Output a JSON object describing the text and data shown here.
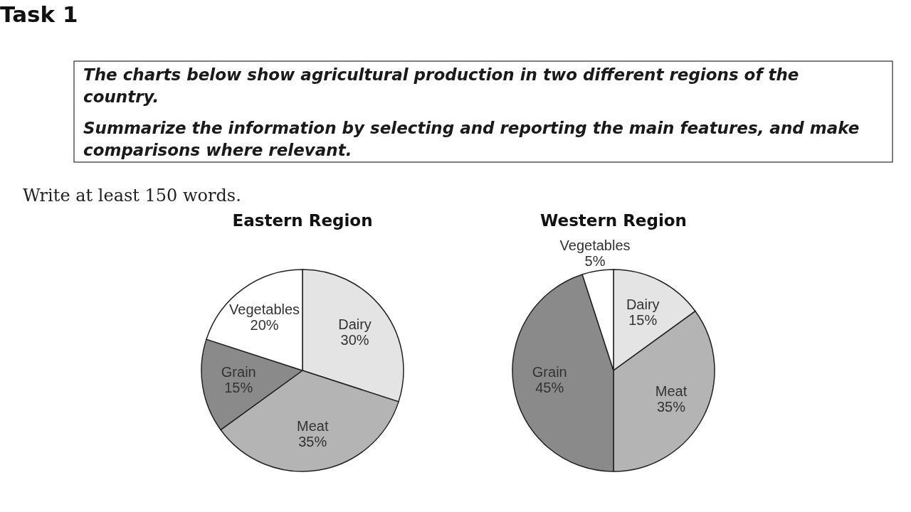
{
  "chart_data": [
    {
      "type": "other",
      "title": "Task 1",
      "annotations": [
        "The charts below show agricultural production in two different regions of the country.",
        "Summarize the information by selecting and reporting the main features, and make comparisons where relevant.",
        "Write at least 150 words."
      ]
    },
    {
      "type": "pie",
      "title": "Eastern Region",
      "categories": [
        "Dairy",
        "Meat",
        "Grain",
        "Vegetables"
      ],
      "values": [
        30,
        35,
        15,
        20
      ],
      "value_labels": [
        "30%",
        "35%",
        "15%",
        "20%"
      ],
      "colors": [
        "#e4e4e4",
        "#b4b4b4",
        "#8a8a8a",
        "#ffffff"
      ],
      "legend": false
    },
    {
      "type": "pie",
      "title": "Western Region",
      "categories": [
        "Dairy",
        "Meat",
        "Grain",
        "Vegetables"
      ],
      "values": [
        15,
        35,
        45,
        5
      ],
      "value_labels": [
        "15%",
        "35%",
        "45%",
        "5%"
      ],
      "colors": [
        "#e4e4e4",
        "#b4b4b4",
        "#7e7e7e",
        "#ffffff"
      ],
      "legend": false
    }
  ]
}
